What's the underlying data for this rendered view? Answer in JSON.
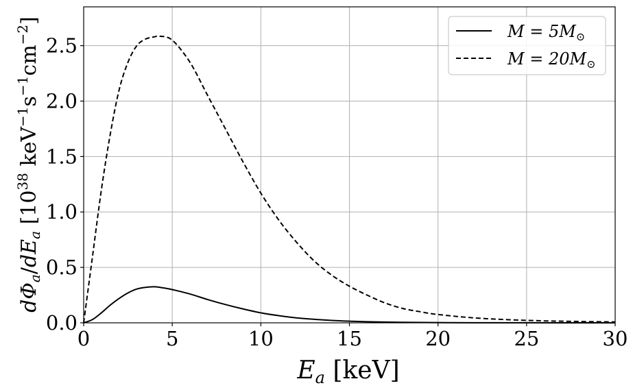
{
  "chart_data": {
    "type": "line",
    "xlabel": "E_a [keV]",
    "ylabel": "dΦ_a/dE_a [10^38 keV^-1 s^-1 cm^-2]",
    "xlim": [
      0,
      30
    ],
    "ylim": [
      0,
      2.85
    ],
    "grid": true,
    "legend_position": "top-right",
    "x_ticks": [
      "0",
      "5",
      "10",
      "15",
      "20",
      "25",
      "30"
    ],
    "y_ticks": [
      "0.0",
      "0.5",
      "1.0",
      "1.5",
      "2.0",
      "2.5"
    ],
    "x_tick_values": [
      0,
      5,
      10,
      15,
      20,
      25,
      30
    ],
    "y_tick_values": [
      0,
      0.5,
      1.0,
      1.5,
      2.0,
      2.5
    ],
    "series": [
      {
        "name": "M = 5M⊙",
        "style": "solid",
        "color": "#000000",
        "x": [
          0,
          0.5,
          1,
          1.5,
          2,
          2.5,
          3,
          3.5,
          4,
          4.5,
          5,
          6,
          7,
          8,
          9,
          10,
          11,
          12,
          13,
          14,
          15,
          16,
          17,
          18,
          20,
          22,
          25,
          30
        ],
        "y": [
          0,
          0.03,
          0.09,
          0.16,
          0.22,
          0.27,
          0.305,
          0.32,
          0.325,
          0.315,
          0.3,
          0.26,
          0.21,
          0.165,
          0.125,
          0.09,
          0.065,
          0.045,
          0.032,
          0.022,
          0.015,
          0.01,
          0.007,
          0.005,
          0.002,
          0.001,
          0.0005,
          0.0001
        ]
      },
      {
        "name": "M = 20M⊙",
        "style": "dashed",
        "color": "#000000",
        "x": [
          0,
          0.5,
          1,
          1.5,
          2,
          2.5,
          3,
          3.5,
          4,
          4.3,
          5,
          6,
          7,
          8,
          9,
          10,
          11,
          12,
          13,
          14,
          15,
          16,
          17,
          18,
          19,
          20,
          22,
          24,
          26,
          28,
          30
        ],
        "y": [
          0,
          0.6,
          1.2,
          1.7,
          2.1,
          2.35,
          2.5,
          2.56,
          2.58,
          2.585,
          2.55,
          2.35,
          2.05,
          1.75,
          1.45,
          1.17,
          0.93,
          0.73,
          0.56,
          0.43,
          0.33,
          0.25,
          0.18,
          0.13,
          0.1,
          0.075,
          0.045,
          0.028,
          0.018,
          0.012,
          0.008
        ]
      }
    ]
  }
}
